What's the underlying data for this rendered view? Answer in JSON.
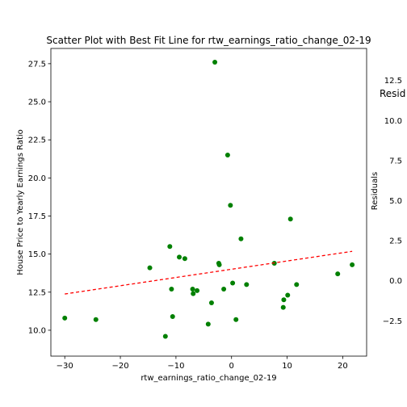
{
  "chart_data": [
    {
      "type": "scatter",
      "title": "Scatter Plot with Best Fit Line for rtw_earnings_ratio_change_02-19",
      "xlabel": "rtw_earnings_ratio_change_02-19",
      "ylabel": "House Price to Yearly Earnings Ratio",
      "xlim": [
        -32.5,
        24.3
      ],
      "ylim": [
        8.3,
        28.5
      ],
      "xticks": [
        -30,
        -20,
        -10,
        0,
        10,
        20
      ],
      "xtick_labels": [
        "−30",
        "−20",
        "−10",
        "0",
        "10",
        "20"
      ],
      "yticks": [
        10.0,
        12.5,
        15.0,
        17.5,
        20.0,
        22.5,
        25.0,
        27.5
      ],
      "ytick_labels": [
        "10.0",
        "12.5",
        "15.0",
        "17.5",
        "20.0",
        "22.5",
        "25.0",
        "27.5"
      ],
      "grid": false,
      "points": [
        {
          "x": -30.0,
          "y": 10.8
        },
        {
          "x": -24.4,
          "y": 10.7
        },
        {
          "x": -14.7,
          "y": 14.1
        },
        {
          "x": -11.9,
          "y": 9.6
        },
        {
          "x": -11.1,
          "y": 15.5
        },
        {
          "x": -10.8,
          "y": 12.7
        },
        {
          "x": -10.6,
          "y": 10.9
        },
        {
          "x": -9.4,
          "y": 14.8
        },
        {
          "x": -8.4,
          "y": 14.7
        },
        {
          "x": -7.0,
          "y": 12.7
        },
        {
          "x": -6.9,
          "y": 12.4
        },
        {
          "x": -6.2,
          "y": 12.6
        },
        {
          "x": -4.2,
          "y": 10.4
        },
        {
          "x": -3.6,
          "y": 11.8
        },
        {
          "x": -3.0,
          "y": 27.6
        },
        {
          "x": -2.3,
          "y": 14.4
        },
        {
          "x": -2.2,
          "y": 14.3
        },
        {
          "x": -1.4,
          "y": 12.7
        },
        {
          "x": -0.7,
          "y": 21.5
        },
        {
          "x": -0.2,
          "y": 18.2
        },
        {
          "x": 0.2,
          "y": 13.1
        },
        {
          "x": 0.8,
          "y": 10.7
        },
        {
          "x": 1.7,
          "y": 16.0
        },
        {
          "x": 2.7,
          "y": 13.0
        },
        {
          "x": 7.7,
          "y": 14.4
        },
        {
          "x": 9.3,
          "y": 11.5
        },
        {
          "x": 9.4,
          "y": 12.0
        },
        {
          "x": 10.1,
          "y": 12.3
        },
        {
          "x": 10.6,
          "y": 17.3
        },
        {
          "x": 11.7,
          "y": 13.0
        },
        {
          "x": 19.1,
          "y": 13.7
        },
        {
          "x": 21.7,
          "y": 14.3
        }
      ],
      "point_color": "#008000",
      "fit_line": {
        "x": [
          -30.0,
          21.7
        ],
        "y": [
          12.38,
          15.18
        ],
        "color": "#ff0000",
        "style": "dashed"
      }
    },
    {
      "type": "scatter",
      "title": "Resid",
      "ylabel": "Residuals",
      "yticks": [
        -2.5,
        0.0,
        2.5,
        5.0,
        7.5,
        10.0,
        12.5
      ],
      "ytick_labels": [
        "−2.5",
        "0.0",
        "2.5",
        "5.0",
        "7.5",
        "10.0",
        "12.5"
      ],
      "ylim": [
        -4.7,
        14.5
      ]
    }
  ]
}
